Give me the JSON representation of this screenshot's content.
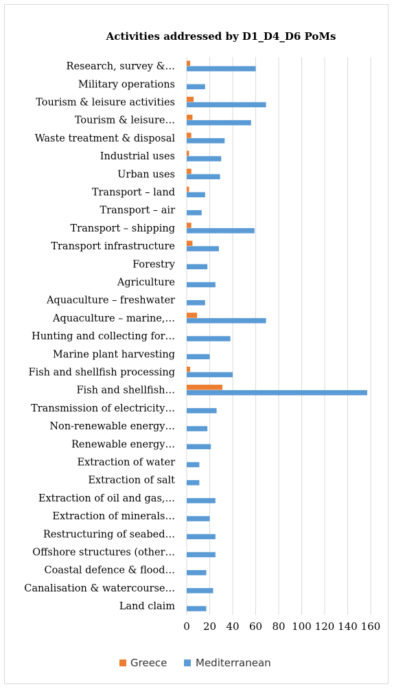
{
  "chart_data": {
    "type": "bar",
    "orientation": "horizontal",
    "title": "Activities  addressed by D1_D4_D6 PoMs",
    "categories": [
      "Research, survey &…",
      "Military operations",
      "Tourism & leisure activities",
      "Tourism & leisure…",
      "Waste treatment & disposal",
      "Industrial uses",
      "Urban uses",
      "Transport – land",
      "Transport – air",
      "Transport – shipping",
      "Transport infrastructure",
      "Forestry",
      "Agriculture",
      "Aquaculture – freshwater",
      "Aquaculture – marine,…",
      "Hunting and collecting for…",
      "Marine plant harvesting",
      "Fish and shellfish processing",
      "Fish and shellfish…",
      "Transmission of electricity…",
      "Non-renewable energy…",
      "Renewable energy…",
      "Extraction of water",
      "Extraction of salt",
      "Extraction of oil and gas,…",
      "Extraction of minerals…",
      "Restructuring of seabed…",
      "Offshore structures (other…",
      "Coastal defence & flood…",
      "Canalisation & watercourse…",
      "Land claim"
    ],
    "series": [
      {
        "name": "Greece",
        "color": "#ED7D31",
        "values": [
          3,
          0,
          6,
          5,
          4,
          2,
          4,
          2,
          0,
          4,
          5,
          0,
          0,
          0,
          9,
          0,
          0,
          3,
          31,
          0,
          0,
          0,
          0,
          0,
          0,
          0,
          0,
          0,
          0,
          0,
          0
        ]
      },
      {
        "name": "Mediterranean",
        "color": "#5B9BD5",
        "values": [
          60,
          16,
          69,
          56,
          33,
          30,
          29,
          16,
          13,
          59,
          28,
          18,
          25,
          16,
          69,
          38,
          20,
          40,
          157,
          26,
          18,
          21,
          11,
          11,
          25,
          20,
          25,
          25,
          17,
          23,
          17
        ]
      }
    ],
    "xlim": [
      0,
      160
    ],
    "xticks": [
      "0",
      "20",
      "40",
      "60",
      "80",
      "100",
      "120",
      "140",
      "160"
    ],
    "grid": true,
    "legend": "bottom"
  }
}
